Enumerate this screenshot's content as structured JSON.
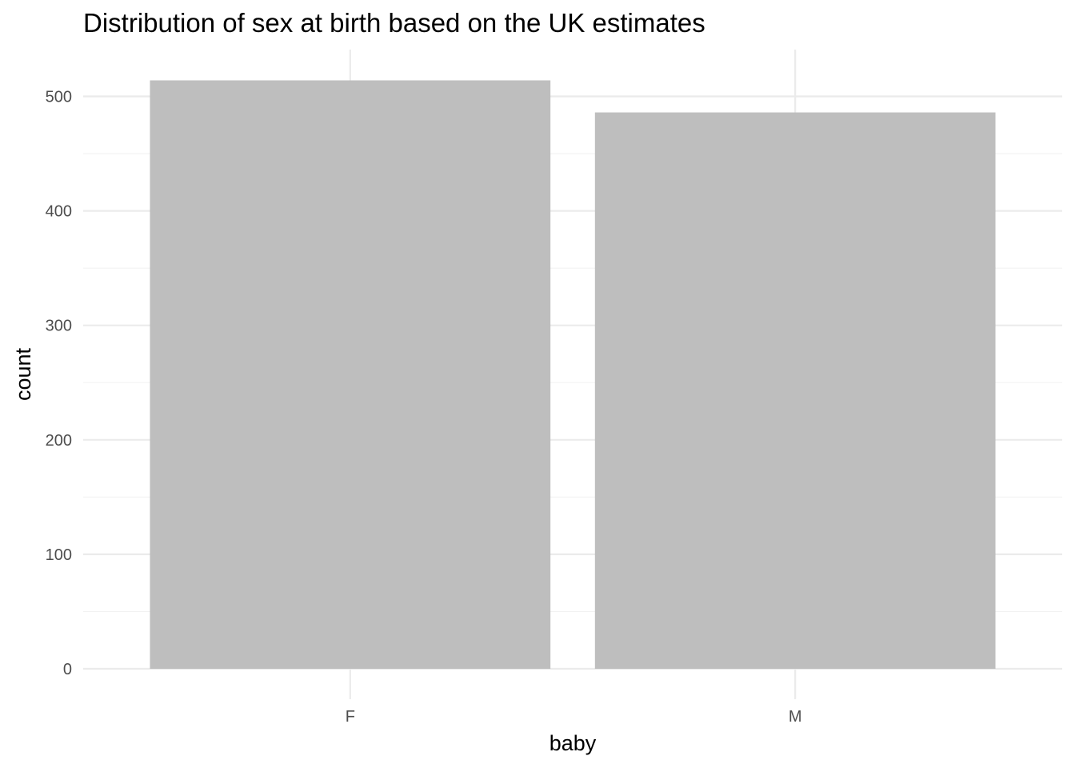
{
  "chart_data": {
    "type": "bar",
    "title": "Distribution of sex at birth based on the UK estimates",
    "xlabel": "baby",
    "ylabel": "count",
    "categories": [
      "F",
      "M"
    ],
    "values": [
      514,
      486
    ],
    "ylim": [
      0,
      540
    ],
    "yticks": [
      0,
      100,
      200,
      300,
      400,
      500
    ],
    "grid": true,
    "legend": "none",
    "colors": {
      "bar": "#bebebe",
      "grid_major": "#ebebeb",
      "grid_minor": "#f2f2f2",
      "background": "#ffffff"
    }
  }
}
